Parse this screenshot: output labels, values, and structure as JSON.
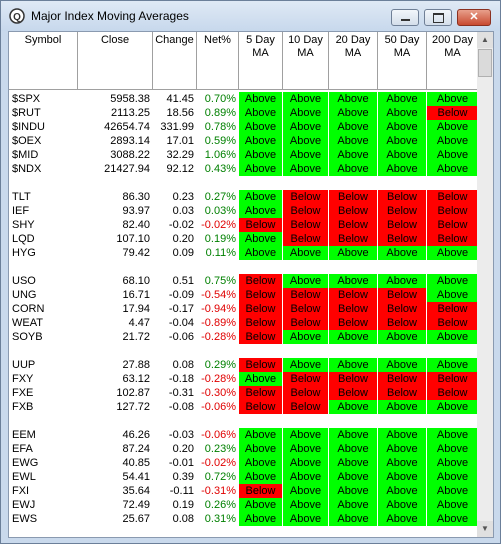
{
  "window": {
    "title": "Major Index Moving Averages"
  },
  "table": {
    "columns": [
      [
        "Symbol"
      ],
      [
        "Close"
      ],
      [
        "Change"
      ],
      [
        "Net%"
      ],
      [
        "5 Day",
        "MA"
      ],
      [
        "10 Day",
        "MA"
      ],
      [
        "20 Day",
        "MA"
      ],
      [
        "50 Day",
        "MA"
      ],
      [
        "200 Day",
        "MA"
      ]
    ],
    "groups": [
      [
        [
          "$SPX",
          "5958.38",
          "41.45",
          "0.70%",
          "Above",
          "Above",
          "Above",
          "Above",
          "Above"
        ],
        [
          "$RUT",
          "2113.25",
          "18.56",
          "0.89%",
          "Above",
          "Above",
          "Above",
          "Above",
          "Below"
        ],
        [
          "$INDU",
          "42654.74",
          "331.99",
          "0.78%",
          "Above",
          "Above",
          "Above",
          "Above",
          "Above"
        ],
        [
          "$OEX",
          "2893.14",
          "17.01",
          "0.59%",
          "Above",
          "Above",
          "Above",
          "Above",
          "Above"
        ],
        [
          "$MID",
          "3088.22",
          "32.29",
          "1.06%",
          "Above",
          "Above",
          "Above",
          "Above",
          "Above"
        ],
        [
          "$NDX",
          "21427.94",
          "92.12",
          "0.43%",
          "Above",
          "Above",
          "Above",
          "Above",
          "Above"
        ]
      ],
      [
        [
          "TLT",
          "86.30",
          "0.23",
          "0.27%",
          "Above",
          "Below",
          "Below",
          "Below",
          "Below"
        ],
        [
          "IEF",
          "93.97",
          "0.03",
          "0.03%",
          "Above",
          "Below",
          "Below",
          "Below",
          "Below"
        ],
        [
          "SHY",
          "82.40",
          "-0.02",
          "-0.02%",
          "Below",
          "Below",
          "Below",
          "Below",
          "Below"
        ],
        [
          "LQD",
          "107.10",
          "0.20",
          "0.19%",
          "Above",
          "Below",
          "Below",
          "Below",
          "Below"
        ],
        [
          "HYG",
          "79.42",
          "0.09",
          "0.11%",
          "Above",
          "Above",
          "Above",
          "Above",
          "Above"
        ]
      ],
      [
        [
          "USO",
          "68.10",
          "0.51",
          "0.75%",
          "Below",
          "Above",
          "Above",
          "Above",
          "Above"
        ],
        [
          "UNG",
          "16.71",
          "-0.09",
          "-0.54%",
          "Below",
          "Below",
          "Below",
          "Below",
          "Above"
        ],
        [
          "CORN",
          "17.94",
          "-0.17",
          "-0.94%",
          "Below",
          "Below",
          "Below",
          "Below",
          "Below"
        ],
        [
          "WEAT",
          "4.47",
          "-0.04",
          "-0.89%",
          "Below",
          "Below",
          "Below",
          "Below",
          "Below"
        ],
        [
          "SOYB",
          "21.72",
          "-0.06",
          "-0.28%",
          "Below",
          "Above",
          "Above",
          "Above",
          "Above"
        ]
      ],
      [
        [
          "UUP",
          "27.88",
          "0.08",
          "0.29%",
          "Below",
          "Above",
          "Above",
          "Above",
          "Above"
        ],
        [
          "FXY",
          "63.12",
          "-0.18",
          "-0.28%",
          "Above",
          "Below",
          "Below",
          "Below",
          "Below"
        ],
        [
          "FXE",
          "102.87",
          "-0.31",
          "-0.30%",
          "Below",
          "Below",
          "Below",
          "Below",
          "Below"
        ],
        [
          "FXB",
          "127.72",
          "-0.08",
          "-0.06%",
          "Below",
          "Below",
          "Above",
          "Above",
          "Above"
        ]
      ],
      [
        [
          "EEM",
          "46.26",
          "-0.03",
          "-0.06%",
          "Above",
          "Above",
          "Above",
          "Above",
          "Above"
        ],
        [
          "EFA",
          "87.24",
          "0.20",
          "0.23%",
          "Above",
          "Above",
          "Above",
          "Above",
          "Above"
        ],
        [
          "EWG",
          "40.85",
          "-0.01",
          "-0.02%",
          "Above",
          "Above",
          "Above",
          "Above",
          "Above"
        ],
        [
          "EWL",
          "54.41",
          "0.39",
          "0.72%",
          "Above",
          "Above",
          "Above",
          "Above",
          "Above"
        ],
        [
          "FXI",
          "35.64",
          "-0.11",
          "-0.31%",
          "Below",
          "Above",
          "Above",
          "Above",
          "Above"
        ],
        [
          "EWJ",
          "72.49",
          "0.19",
          "0.26%",
          "Above",
          "Above",
          "Above",
          "Above",
          "Above"
        ],
        [
          "EWS",
          "25.67",
          "0.08",
          "0.31%",
          "Above",
          "Above",
          "Above",
          "Above",
          "Above"
        ]
      ]
    ]
  }
}
